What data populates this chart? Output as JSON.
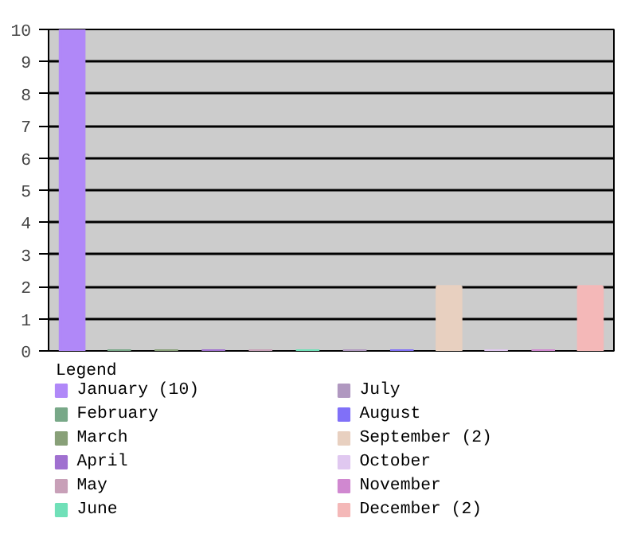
{
  "chart_data": {
    "type": "bar",
    "categories": [
      null,
      null,
      null,
      null,
      null,
      null,
      null,
      null,
      null,
      null,
      null,
      null
    ],
    "series": [
      {
        "name": "January (10)",
        "color": "#b088f8",
        "values": [
          10,
          null,
          null,
          null,
          null,
          null,
          null,
          null,
          null,
          null,
          null,
          null
        ]
      },
      {
        "name": "February",
        "color": "#78a888",
        "values": [
          null,
          0,
          null,
          null,
          null,
          null,
          null,
          null,
          null,
          null,
          null,
          null
        ]
      },
      {
        "name": "March",
        "color": "#88a078",
        "values": [
          null,
          null,
          0,
          null,
          null,
          null,
          null,
          null,
          null,
          null,
          null,
          null
        ]
      },
      {
        "name": "April",
        "color": "#a070d0",
        "values": [
          null,
          null,
          null,
          0,
          null,
          null,
          null,
          null,
          null,
          null,
          null,
          null
        ]
      },
      {
        "name": "May",
        "color": "#c8a0b8",
        "values": [
          null,
          null,
          null,
          null,
          0,
          null,
          null,
          null,
          null,
          null,
          null,
          null
        ]
      },
      {
        "name": "June",
        "color": "#70e0b8",
        "values": [
          null,
          null,
          null,
          null,
          null,
          0,
          null,
          null,
          null,
          null,
          null,
          null
        ]
      },
      {
        "name": "July",
        "color": "#b098c0",
        "values": [
          null,
          null,
          null,
          null,
          null,
          null,
          0,
          null,
          null,
          null,
          null,
          null
        ]
      },
      {
        "name": "August",
        "color": "#8070f8",
        "values": [
          null,
          null,
          null,
          null,
          null,
          null,
          null,
          0,
          null,
          null,
          null,
          null
        ]
      },
      {
        "name": "September (2)",
        "color": "#e8d0c0",
        "values": [
          null,
          null,
          null,
          null,
          null,
          null,
          null,
          null,
          2,
          null,
          null,
          null
        ]
      },
      {
        "name": "October",
        "color": "#e0c8f0",
        "values": [
          null,
          null,
          null,
          null,
          null,
          null,
          null,
          null,
          null,
          0,
          null,
          null
        ]
      },
      {
        "name": "November",
        "color": "#d088d0",
        "values": [
          null,
          null,
          null,
          null,
          null,
          null,
          null,
          null,
          null,
          null,
          0,
          null
        ]
      },
      {
        "name": "December (2)",
        "color": "#f4b8b8",
        "values": [
          null,
          null,
          null,
          null,
          null,
          null,
          null,
          null,
          null,
          null,
          null,
          2
        ]
      }
    ],
    "ylim": [
      0,
      10
    ],
    "yticks": [
      0,
      1,
      2,
      3,
      4,
      5,
      6,
      7,
      8,
      9,
      10
    ],
    "grid": "y",
    "legend": "bottom",
    "legend_title": "Legend",
    "tick_labels": "y"
  }
}
